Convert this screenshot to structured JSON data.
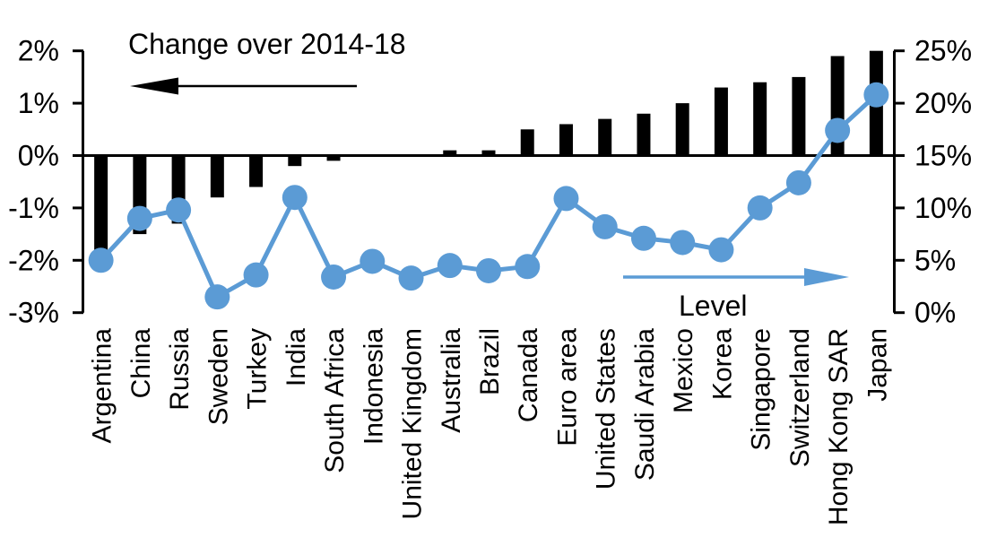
{
  "chart_data": {
    "type": "combo",
    "categories": [
      "Argentina",
      "China",
      "Russia",
      "Sweden",
      "Turkey",
      "India",
      "South Africa",
      "Indonesia",
      "United Kingdom",
      "Australia",
      "Brazil",
      "Canada",
      "Euro area",
      "United States",
      "Saudi Arabia",
      "Mexico",
      "Korea",
      "Singapore",
      "Switzerland",
      "Hong Kong SAR",
      "Japan"
    ],
    "series": [
      {
        "name": "Change over 2014-18",
        "type": "bar",
        "axis": "left",
        "values": [
          -1.8,
          -1.5,
          -1.3,
          -0.8,
          -0.6,
          -0.2,
          -0.1,
          0.0,
          0.0,
          0.1,
          0.1,
          0.5,
          0.6,
          0.7,
          0.8,
          1.0,
          1.3,
          1.4,
          1.5,
          1.9,
          2.0
        ]
      },
      {
        "name": "Level",
        "type": "line",
        "axis": "right",
        "values": [
          5.0,
          9.0,
          9.8,
          1.5,
          3.6,
          11.0,
          3.4,
          4.9,
          3.3,
          4.5,
          4.0,
          4.4,
          10.9,
          8.2,
          7.1,
          6.7,
          6.0,
          10.0,
          12.4,
          17.4,
          20.8
        ]
      }
    ],
    "left_axis": {
      "ticks": [
        "2%",
        "1%",
        "0%",
        "-1%",
        "-2%",
        "-3%"
      ],
      "tick_values": [
        2,
        1,
        0,
        -1,
        -2,
        -3
      ],
      "range": [
        -3,
        2
      ]
    },
    "right_axis": {
      "ticks": [
        "25%",
        "20%",
        "15%",
        "10%",
        "5%",
        "0%"
      ],
      "tick_values": [
        25,
        20,
        15,
        10,
        5,
        0
      ],
      "range": [
        0,
        25
      ]
    },
    "series_labels": {
      "change": "Change over 2014-18",
      "level": "Level"
    },
    "annotations": {
      "change_arrow_direction": "left",
      "level_arrow_direction": "right"
    },
    "colors": {
      "bar": "#000000",
      "line": "#5b9bd5",
      "axis": "#000000",
      "background": "#ffffff"
    },
    "legend": "none",
    "grid": false,
    "xlabel": "",
    "ylabel_left": "",
    "ylabel_right": ""
  }
}
